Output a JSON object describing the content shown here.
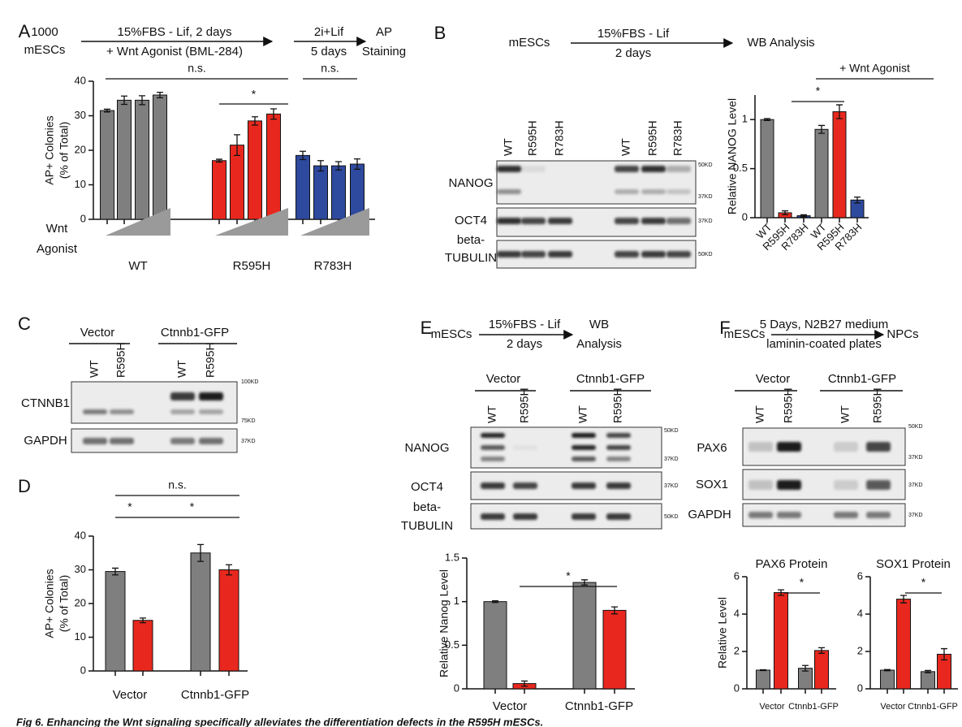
{
  "panel_letters": [
    "A",
    "B",
    "C",
    "D",
    "E",
    "F"
  ],
  "schematic_A": {
    "start": [
      "1000",
      "mESCs"
    ],
    "step1": [
      "15%FBS - Lif, 2 days",
      "+ Wnt Agonist (BML-284)"
    ],
    "step2": [
      "2i+Lif",
      "5 days"
    ],
    "end": [
      "AP",
      "Staining"
    ]
  },
  "schematic_B": {
    "start": "mESCs",
    "step": [
      "15%FBS - Lif",
      "2 days"
    ],
    "end": "WB Analysis"
  },
  "schematic_E": {
    "start": "mESCs",
    "step": [
      "15%FBS - Lif",
      "2 days"
    ],
    "end": [
      "WB",
      "Analysis"
    ]
  },
  "schematic_F": {
    "start": "mESCs",
    "step": [
      "5 Days, N2B27 medium",
      "laminin-coated plates"
    ],
    "end": "NPCs"
  },
  "blot_B": {
    "group": "+ Wnt Agonist",
    "lanes": [
      "WT",
      "R595H",
      "R783H",
      "WT",
      "R595H",
      "R783H"
    ],
    "rows": [
      "NANOG",
      "OCT4",
      "beta-",
      "TUBULIN"
    ],
    "markers": [
      "50KD",
      "37KD",
      "37KD",
      "50KD"
    ]
  },
  "blot_C": {
    "groups": [
      "Vector",
      "Ctnnb1-GFP"
    ],
    "lanes": [
      "WT",
      "R595H",
      "WT",
      "R595H"
    ],
    "rows": [
      "CTNNB1",
      "GAPDH"
    ],
    "markers": [
      "100KD",
      "75KD",
      "37KD"
    ]
  },
  "blot_E": {
    "groups": [
      "Vector",
      "Ctnnb1-GFP"
    ],
    "lanes": [
      "WT",
      "R595H",
      "WT",
      "R595H"
    ],
    "rows": [
      "NANOG",
      "OCT4",
      "beta-",
      "TUBULIN"
    ],
    "markers": [
      "50KD",
      "37KD",
      "37KD",
      "50KD"
    ]
  },
  "blot_F": {
    "groups": [
      "Vector",
      "Ctnnb1-GFP"
    ],
    "lanes": [
      "WT",
      "R595H",
      "WT",
      "R595H"
    ],
    "rows": [
      "PAX6",
      "SOX1",
      "GAPDH"
    ],
    "markers": [
      "50KD",
      "37KD",
      "37KD",
      "37KD"
    ]
  },
  "chart_data": [
    {
      "type": "bar",
      "ylabel": [
        "AP+ Colonies",
        "(% of Total)"
      ],
      "categories": [
        null,
        null,
        null,
        null,
        null,
        null,
        null,
        null,
        null,
        null,
        null,
        null
      ],
      "values": [
        31.5,
        34.5,
        34.5,
        36,
        17,
        21.5,
        28.5,
        30.5,
        18.5,
        15.5,
        15.5,
        16
      ],
      "errors": [
        0.4,
        1.2,
        1.3,
        0.8,
        0.4,
        3,
        1.2,
        1.5,
        1.2,
        1.5,
        1.2,
        1.5
      ],
      "colors": [
        "#7f7f7f",
        "#7f7f7f",
        "#7f7f7f",
        "#7f7f7f",
        "#e8281e",
        "#e8281e",
        "#e8281e",
        "#e8281e",
        "#2e4a9e",
        "#2e4a9e",
        "#2e4a9e",
        "#2e4a9e"
      ],
      "ylim": [
        0,
        40
      ],
      "yticks": [
        0,
        10,
        20,
        30,
        40
      ],
      "groups": [
        "WT",
        "R595H",
        "R783H"
      ],
      "xlabel": [
        "Wnt",
        "Agonist"
      ],
      "annotations": [
        "n.s.",
        "*",
        "n.s."
      ]
    },
    {
      "type": "bar",
      "ylabel": [
        "Relative NANOG Level"
      ],
      "categories": [
        "WT",
        "R595H",
        "R783H",
        "WT",
        "R595H",
        "R783H"
      ],
      "values": [
        1,
        0.05,
        0.02,
        0.9,
        1.08,
        0.18
      ],
      "errors": [
        0.01,
        0.02,
        0.01,
        0.04,
        0.07,
        0.03
      ],
      "colors": [
        "#7f7f7f",
        "#e8281e",
        "#2e4a9e",
        "#7f7f7f",
        "#e8281e",
        "#2e4a9e"
      ],
      "ylim": [
        0,
        1.25
      ],
      "yticks": [
        0,
        0.5,
        1
      ],
      "annotations": [
        "+ Wnt Agonist",
        "*"
      ]
    },
    {
      "type": "bar",
      "ylabel": [
        "AP+ Colonies",
        "(% of Total)"
      ],
      "categories": [
        null,
        null,
        null,
        null
      ],
      "values": [
        29.5,
        15,
        35,
        30
      ],
      "errors": [
        1,
        0.7,
        2.5,
        1.5
      ],
      "colors": [
        "#7f7f7f",
        "#e8281e",
        "#7f7f7f",
        "#e8281e"
      ],
      "ylim": [
        0,
        40
      ],
      "yticks": [
        0,
        10,
        20,
        30,
        40
      ],
      "groups": [
        "Vector",
        "Ctnnb1-GFP"
      ],
      "annotations": [
        "n.s.",
        "*",
        "*"
      ]
    },
    {
      "type": "bar",
      "ylabel": [
        "Relative Nanog Level"
      ],
      "categories": [
        null,
        null,
        null,
        null
      ],
      "values": [
        1,
        0.06,
        1.22,
        0.9
      ],
      "errors": [
        0.01,
        0.03,
        0.03,
        0.04
      ],
      "colors": [
        "#7f7f7f",
        "#e8281e",
        "#7f7f7f",
        "#e8281e"
      ],
      "ylim": [
        0,
        1.5
      ],
      "yticks": [
        0,
        0.5,
        1,
        1.5
      ],
      "groups": [
        "Vector",
        "Ctnnb1-GFP"
      ],
      "annotations": [
        "*"
      ]
    },
    {
      "type": "bar",
      "title": "PAX6 Protein",
      "ylabel": [
        "Relative Level"
      ],
      "categories": [
        null,
        null,
        null,
        null
      ],
      "values": [
        1,
        5.15,
        1.1,
        2.05
      ],
      "errors": [
        0.02,
        0.15,
        0.15,
        0.15
      ],
      "colors": [
        "#7f7f7f",
        "#e8281e",
        "#7f7f7f",
        "#e8281e"
      ],
      "ylim": [
        0,
        6
      ],
      "yticks": [
        0,
        2,
        4,
        6
      ],
      "groups": [
        "Vector",
        "Ctnnb1-GFP"
      ],
      "annotations": [
        "*"
      ]
    },
    {
      "type": "bar",
      "title": "SOX1 Protein",
      "categories": [
        null,
        null,
        null,
        null
      ],
      "values": [
        1,
        4.8,
        0.92,
        1.85
      ],
      "errors": [
        0.03,
        0.2,
        0.06,
        0.3
      ],
      "colors": [
        "#7f7f7f",
        "#e8281e",
        "#7f7f7f",
        "#e8281e"
      ],
      "ylim": [
        0,
        6
      ],
      "yticks": [
        0,
        2,
        4,
        6
      ],
      "groups": [
        "Vector",
        "Ctnnb1-GFP"
      ],
      "annotations": [
        "*"
      ]
    }
  ],
  "caption": "Fig 6. Enhancing the Wnt signaling specifically alleviates the differentiation defects in the R595H mESCs."
}
